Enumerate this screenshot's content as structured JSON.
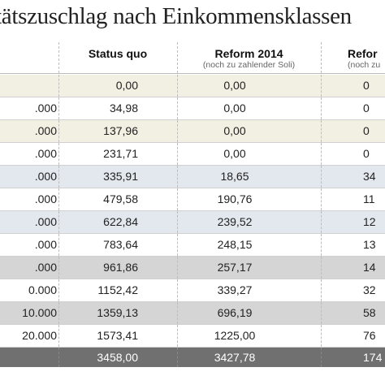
{
  "title": "tätszuschlag nach Einkommensklassen",
  "columns": [
    {
      "main": "Status quo",
      "sub": ""
    },
    {
      "main": "Reform 2014",
      "sub": "(noch zu zahlender Soli)"
    },
    {
      "main": "Refor",
      "sub": "(noch zu"
    }
  ],
  "colors": {
    "beige": "#f2efe3",
    "white": "#ffffff",
    "blue": "#e2e8ee",
    "gray": "#d5d5d5",
    "dark": "#707070"
  },
  "rows": [
    {
      "label": "",
      "status_quo": "0,00",
      "reform_2014": "0,00",
      "reform_partial": "0",
      "bg": "beige"
    },
    {
      "label": ".000",
      "status_quo": "34,98",
      "reform_2014": "0,00",
      "reform_partial": "0",
      "bg": "white"
    },
    {
      "label": ".000",
      "status_quo": "137,96",
      "reform_2014": "0,00",
      "reform_partial": "0",
      "bg": "beige"
    },
    {
      "label": ".000",
      "status_quo": "231,71",
      "reform_2014": "0,00",
      "reform_partial": "0",
      "bg": "white"
    },
    {
      "label": ".000",
      "status_quo": "335,91",
      "reform_2014": "18,65",
      "reform_partial": "34",
      "bg": "blue"
    },
    {
      "label": ".000",
      "status_quo": "479,58",
      "reform_2014": "190,76",
      "reform_partial": "11",
      "bg": "white"
    },
    {
      "label": ".000",
      "status_quo": "622,84",
      "reform_2014": "239,52",
      "reform_partial": "12",
      "bg": "blue"
    },
    {
      "label": ".000",
      "status_quo": "783,64",
      "reform_2014": "248,15",
      "reform_partial": "13",
      "bg": "white"
    },
    {
      "label": ".000",
      "status_quo": "961,86",
      "reform_2014": "257,17",
      "reform_partial": "14",
      "bg": "gray"
    },
    {
      "label": "0.000",
      "status_quo": "1152,42",
      "reform_2014": "339,27",
      "reform_partial": "32",
      "bg": "white"
    },
    {
      "label": "10.000",
      "status_quo": "1359,13",
      "reform_2014": "696,19",
      "reform_partial": "58",
      "bg": "gray"
    },
    {
      "label": "20.000",
      "status_quo": "1573,41",
      "reform_2014": "1225,00",
      "reform_partial": "76",
      "bg": "white"
    },
    {
      "label": "",
      "status_quo": "3458,00",
      "reform_2014": "3427,78",
      "reform_partial": "174",
      "bg": "dark"
    }
  ]
}
